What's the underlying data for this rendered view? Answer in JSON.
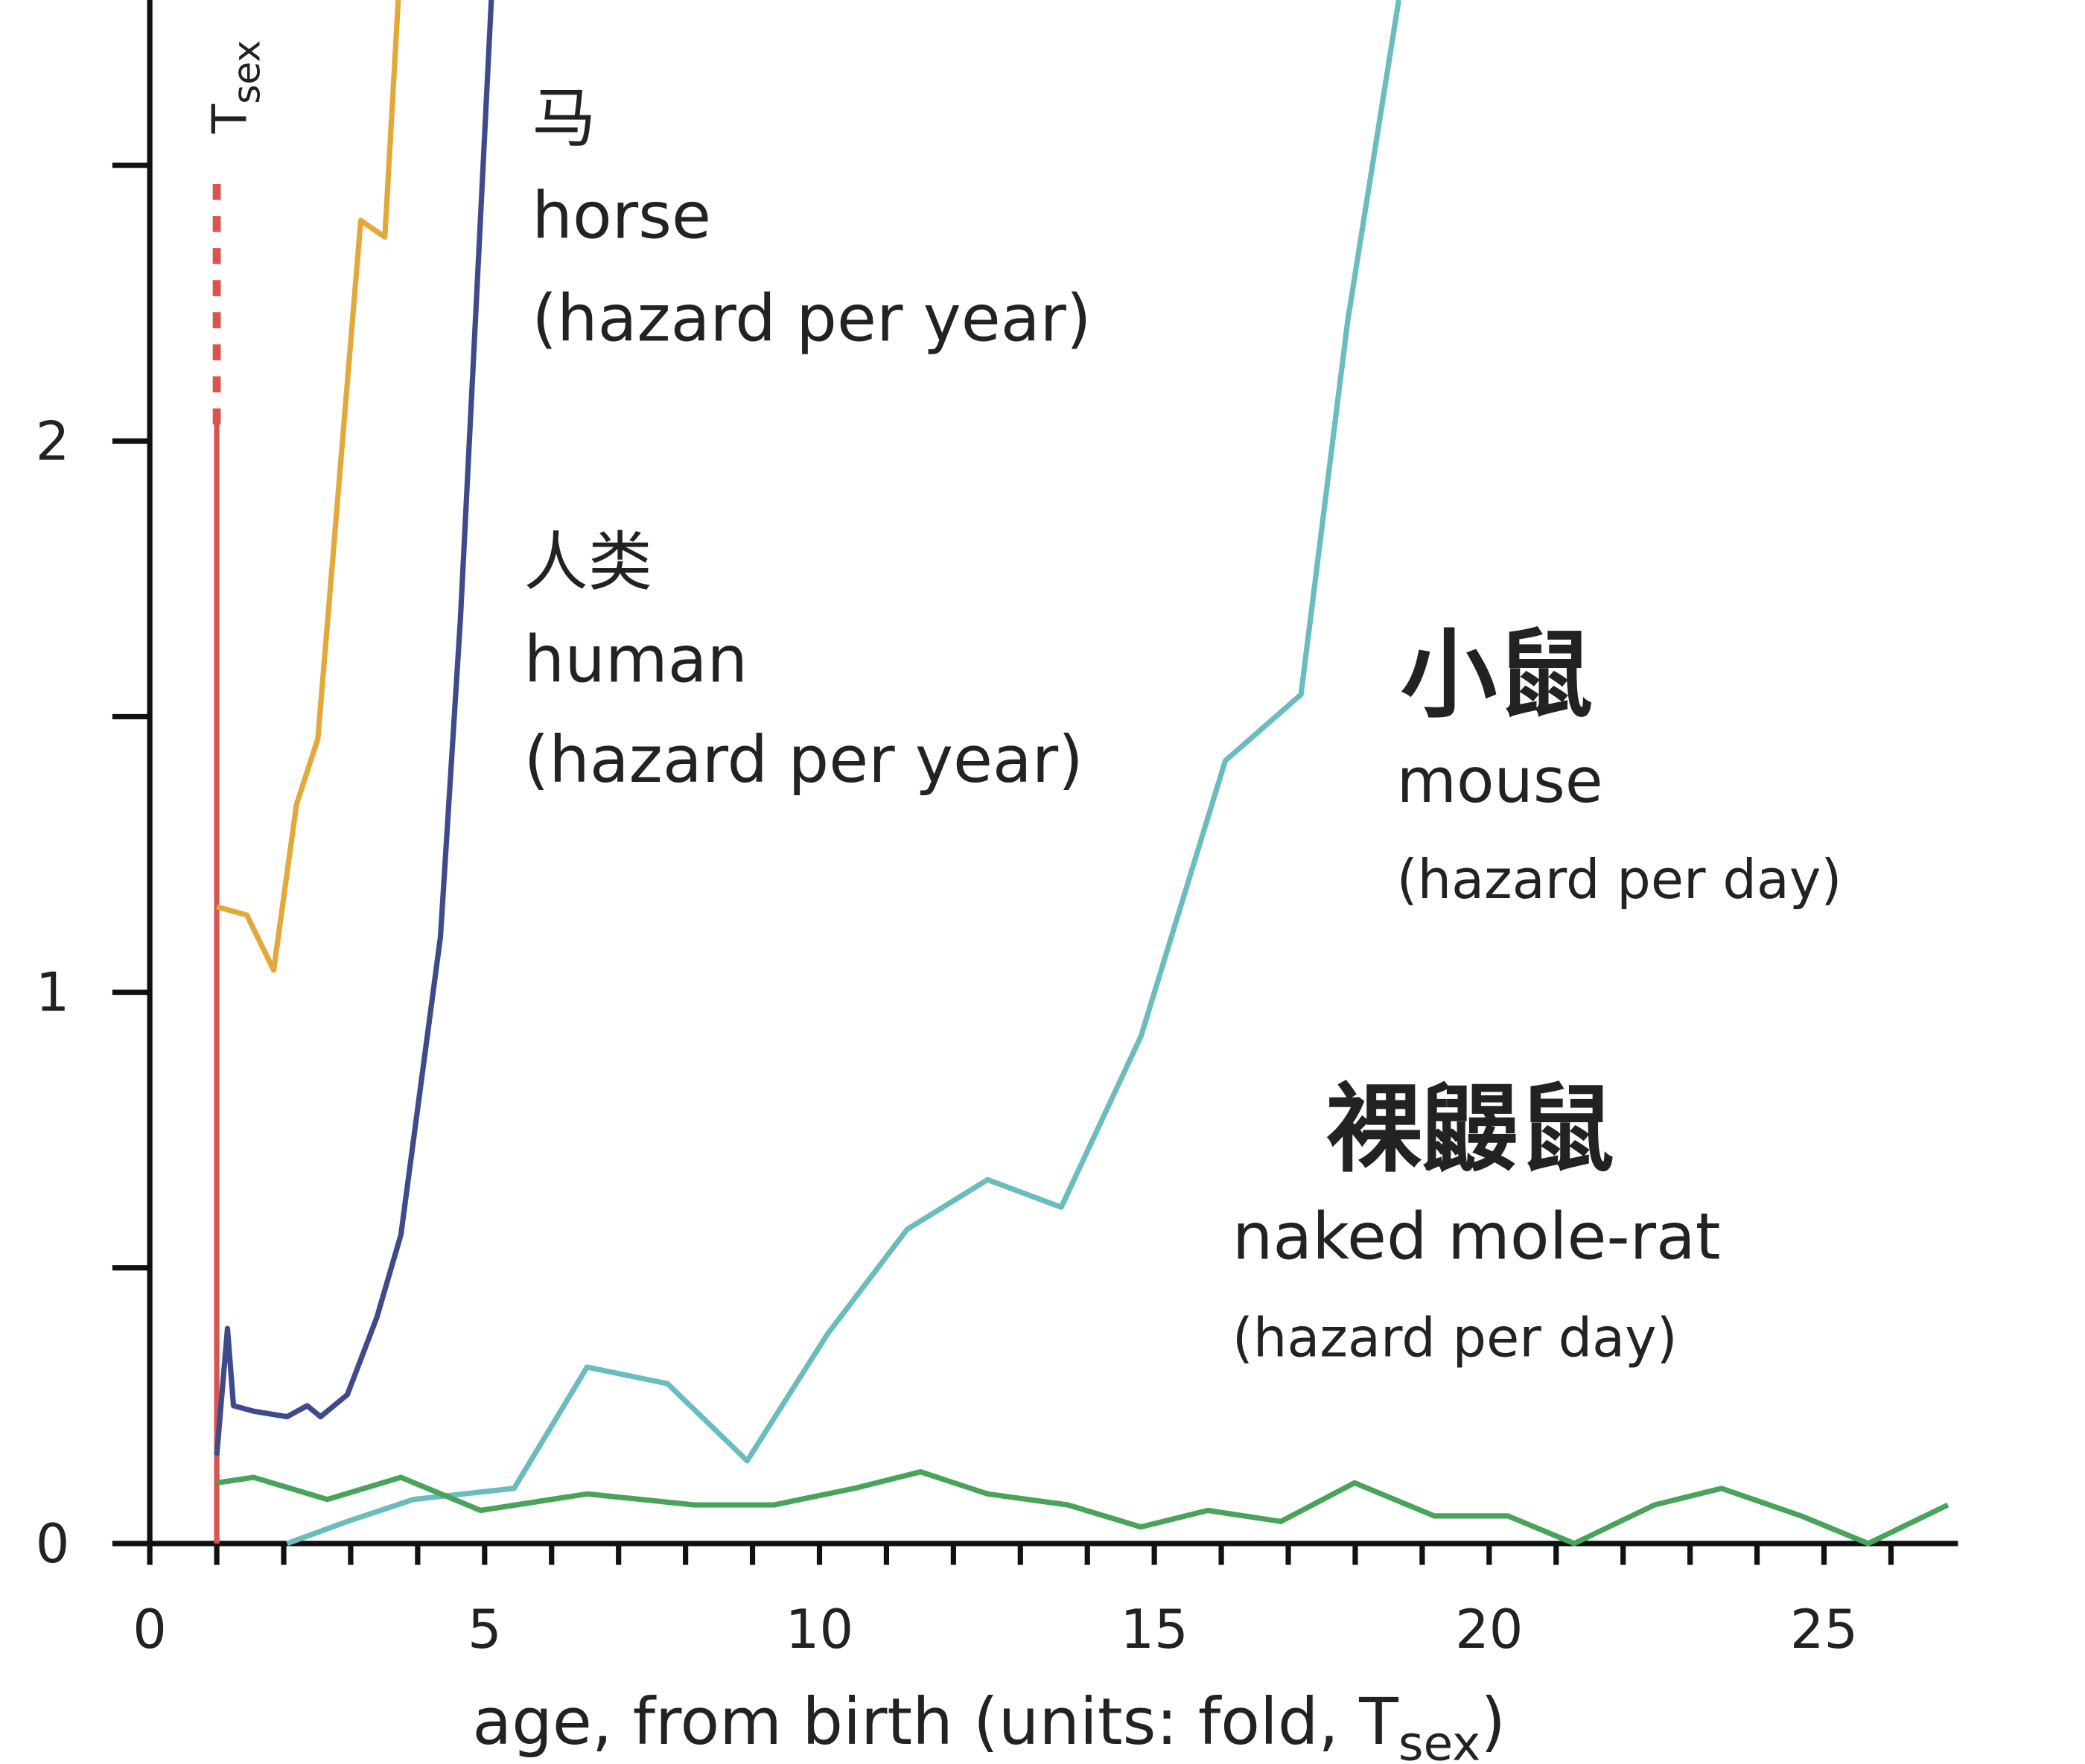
{
  "chart_data": {
    "type": "line",
    "xlim": [
      0,
      27
    ],
    "ylim": [
      0,
      2.8
    ],
    "xticks": [
      0,
      5,
      10,
      15,
      20,
      25
    ],
    "xminor_ticks": [
      1,
      2,
      3,
      4,
      6,
      7,
      8,
      9,
      11,
      12,
      13,
      14,
      16,
      17,
      18,
      19,
      21,
      22,
      23,
      24,
      26
    ],
    "yticks": [
      0,
      1,
      2
    ],
    "yminor_ticks": [
      0.5,
      1.5,
      2.5
    ],
    "xlabel": [
      "age, from birth (units: fold, T",
      "sex",
      ")"
    ],
    "tsex": {
      "x": 1,
      "solid_to": 2.03,
      "dashed_to": 2.49,
      "color": "#d9534f",
      "label": "T",
      "label_sub": "sex"
    },
    "series": [
      {
        "name": "horse",
        "name_cn": "马",
        "unit": "(hazard per year)",
        "color": "#e3a83a",
        "text_color": "#f5b400",
        "x": [
          1.0,
          1.45,
          1.85,
          2.19,
          2.51,
          3.15,
          3.51,
          3.71
        ],
        "values": [
          1.155,
          1.14,
          1.04,
          1.34,
          1.46,
          2.4,
          2.37,
          2.8
        ]
      },
      {
        "name": "human",
        "name_cn": "人类",
        "unit": "(hazard per year)",
        "color": "#3f4a8c",
        "text_color": "#2196f3",
        "x": [
          1.0,
          1.16,
          1.25,
          1.55,
          2.05,
          2.35,
          2.55,
          2.95,
          3.39,
          3.75,
          4.34,
          4.64,
          4.9,
          5.1
        ],
        "values": [
          0.16,
          0.39,
          0.25,
          0.24,
          0.23,
          0.25,
          0.23,
          0.27,
          0.41,
          0.56,
          1.1,
          1.68,
          2.31,
          2.8
        ]
      },
      {
        "name": "mouse",
        "name_cn": "小鼠",
        "unit": "(hazard per day)",
        "color": "#6bbcbc",
        "text_color": "#7cc6c6",
        "x": [
          2.05,
          2.95,
          3.94,
          5.44,
          6.53,
          7.73,
          8.92,
          10.12,
          11.31,
          12.51,
          13.61,
          14.8,
          16.06,
          17.19,
          17.89,
          18.65
        ],
        "values": [
          0,
          0.04,
          0.08,
          0.1,
          0.32,
          0.29,
          0.15,
          0.38,
          0.57,
          0.66,
          0.61,
          0.92,
          1.42,
          1.54,
          2.22,
          2.8
        ]
      },
      {
        "name": "naked mole-rat",
        "name_cn": "裸鼹鼠",
        "unit": "(hazard per day)",
        "color": "#4aa35a",
        "text_color": "#6db86a",
        "x": [
          1.0,
          1.55,
          2.65,
          3.75,
          4.94,
          6.53,
          8.13,
          9.32,
          10.52,
          11.51,
          12.51,
          13.71,
          14.8,
          15.8,
          16.89,
          17.99,
          19.18,
          20.28,
          21.27,
          22.47,
          23.47,
          24.66,
          25.66,
          26.85
        ],
        "values": [
          0.11,
          0.12,
          0.08,
          0.12,
          0.06,
          0.09,
          0.07,
          0.07,
          0.1,
          0.13,
          0.09,
          0.07,
          0.03,
          0.06,
          0.04,
          0.11,
          0.05,
          0.05,
          0,
          0.07,
          0.1,
          0.05,
          0,
          0.07
        ]
      }
    ]
  }
}
